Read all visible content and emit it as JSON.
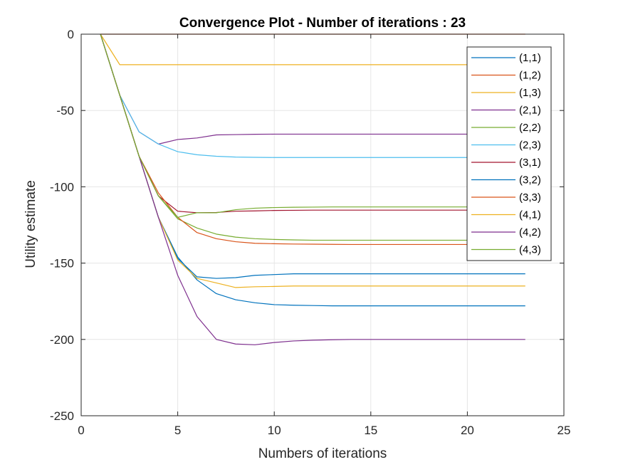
{
  "chart_data": {
    "type": "line",
    "title": "Convergence Plot - Number of iterations : 23",
    "xlabel": "Numbers of iterations",
    "ylabel": "Utility estimate",
    "xlim": [
      0,
      25
    ],
    "ylim": [
      -250,
      0
    ],
    "xticks": [
      "0",
      "5",
      "10",
      "15",
      "20",
      "25"
    ],
    "yticks": [
      "0",
      "-50",
      "-100",
      "-150",
      "-200",
      "-250"
    ],
    "grid": true,
    "legend_position": "top-right",
    "x": [
      1,
      2,
      3,
      4,
      5,
      6,
      7,
      8,
      9,
      10,
      11,
      12,
      13,
      14,
      15,
      16,
      17,
      18,
      19,
      20,
      21,
      22,
      23
    ],
    "series": [
      {
        "name": "(1,1)",
        "color": "#0072BD",
        "values": [
          0,
          -40,
          -80,
          -120,
          -147,
          -159,
          -160,
          -159.5,
          -158,
          -157.5,
          -157,
          -157,
          -157,
          -157,
          -157,
          -157,
          -157,
          -157,
          -157,
          -157,
          -157,
          -157,
          -157
        ]
      },
      {
        "name": "(1,2)",
        "color": "#D95319",
        "values": [
          0,
          0,
          0,
          0,
          0,
          0,
          0,
          0,
          0,
          0,
          0,
          0,
          0,
          0,
          0,
          0,
          0,
          0,
          0,
          0,
          0,
          0,
          0
        ]
      },
      {
        "name": "(1,3)",
        "color": "#EDB120",
        "values": [
          0,
          -20,
          -20,
          -20,
          -20,
          -20,
          -20,
          -20,
          -20,
          -20,
          -20,
          -20,
          -20,
          -20,
          -20,
          -20,
          -20,
          -20,
          -20,
          -20,
          -20,
          -20,
          -20
        ]
      },
      {
        "name": "(2,1)",
        "color": "#7E2F8E",
        "values": [
          0,
          -40,
          -64,
          -72,
          -69,
          -68,
          -66,
          -65.8,
          -65.6,
          -65.5,
          -65.5,
          -65.5,
          -65.5,
          -65.5,
          -65.5,
          -65.5,
          -65.5,
          -65.5,
          -65.5,
          -65.5,
          -65.5,
          -65.5,
          -65.5
        ]
      },
      {
        "name": "(2,2)",
        "color": "#77AC30",
        "values": [
          0,
          -40,
          -80,
          -106,
          -121,
          -127,
          -131,
          -133,
          -134,
          -134.5,
          -134.8,
          -135,
          -135,
          -135,
          -135,
          -135,
          -135,
          -135,
          -135,
          -135,
          -135,
          -135,
          -135
        ]
      },
      {
        "name": "(2,3)",
        "color": "#4DBEEE",
        "values": [
          0,
          -40,
          -64,
          -72,
          -77,
          -79,
          -80,
          -80.5,
          -80.7,
          -80.8,
          -80.8,
          -80.8,
          -80.8,
          -80.8,
          -80.8,
          -80.8,
          -80.8,
          -80.8,
          -80.8,
          -80.8,
          -80.8,
          -80.8,
          -80.8
        ]
      },
      {
        "name": "(3,1)",
        "color": "#A2142F",
        "values": [
          0,
          -40,
          -80,
          -106,
          -116,
          -117,
          -116.8,
          -116,
          -115.8,
          -115.5,
          -115.4,
          -115.3,
          -115.3,
          -115.3,
          -115.3,
          -115.3,
          -115.3,
          -115.3,
          -115.3,
          -115.3,
          -115.3,
          -115.3,
          -115.3
        ]
      },
      {
        "name": "(3,2)",
        "color": "#0072BD",
        "values": [
          0,
          -40,
          -80,
          -120,
          -146,
          -161,
          -170,
          -174,
          -176,
          -177.2,
          -177.6,
          -177.8,
          -178,
          -178,
          -178,
          -178,
          -178,
          -178,
          -178,
          -178,
          -178,
          -178,
          -178
        ]
      },
      {
        "name": "(3,3)",
        "color": "#D95319",
        "values": [
          0,
          -40,
          -80,
          -104,
          -120,
          -130,
          -134,
          -136,
          -137,
          -137.3,
          -137.5,
          -137.6,
          -137.7,
          -137.8,
          -137.8,
          -137.8,
          -137.8,
          -137.8,
          -137.8,
          -137.8,
          -137.8,
          -137.8,
          -137.8
        ]
      },
      {
        "name": "(4,1)",
        "color": "#EDB120",
        "values": [
          0,
          -40,
          -80,
          -120,
          -148,
          -160,
          -163,
          -166,
          -165.5,
          -165.3,
          -165,
          -165,
          -165,
          -165,
          -165,
          -165,
          -165,
          -165,
          -165,
          -165,
          -165,
          -165,
          -165
        ]
      },
      {
        "name": "(4,2)",
        "color": "#7E2F8E",
        "values": [
          0,
          -40,
          -80,
          -120,
          -158,
          -185,
          -200,
          -203,
          -203.5,
          -202,
          -201,
          -200.5,
          -200.2,
          -200,
          -200,
          -200,
          -200,
          -200,
          -200,
          -200,
          -200,
          -200,
          -200
        ]
      },
      {
        "name": "(4,3)",
        "color": "#77AC30",
        "values": [
          0,
          -40,
          -80,
          -106,
          -120,
          -117,
          -117,
          -115,
          -114,
          -113.6,
          -113.4,
          -113.3,
          -113.2,
          -113.2,
          -113.2,
          -113.2,
          -113.2,
          -113.2,
          -113.2,
          -113.2,
          -113.2,
          -113.2,
          -113.2
        ]
      }
    ]
  }
}
